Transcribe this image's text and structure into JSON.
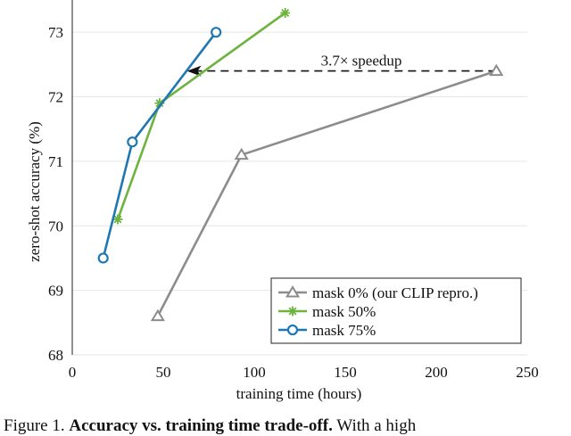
{
  "chart_data": {
    "type": "line",
    "xlabel": "training time (hours)",
    "ylabel": "zero-shot accuracy (%)",
    "xlim": [
      0,
      250
    ],
    "ylim": [
      68,
      73.5
    ],
    "xticks": [
      0,
      50,
      100,
      150,
      200,
      250
    ],
    "yticks": [
      68,
      69,
      70,
      71,
      72,
      73
    ],
    "grid": "horizontal",
    "legend_position": "bottom-right",
    "series": [
      {
        "name": "mask 0% (our CLIP repro.)",
        "color": "#8c8c8c",
        "marker": "triangle",
        "x": [
          47,
          93,
          233
        ],
        "y": [
          68.6,
          71.1,
          72.4
        ]
      },
      {
        "name": "mask 50%",
        "color": "#6db33f",
        "marker": "asterisk",
        "x": [
          25,
          48,
          117
        ],
        "y": [
          70.1,
          71.9,
          73.3
        ]
      },
      {
        "name": "mask 75%",
        "color": "#1f77b4",
        "marker": "circle",
        "x": [
          17,
          33,
          79
        ],
        "y": [
          69.5,
          71.3,
          73.0
        ]
      }
    ],
    "annotation": {
      "text": "3.7× speedup",
      "from": [
        233,
        72.4
      ],
      "to": [
        63,
        72.4
      ]
    }
  },
  "caption": {
    "prefix": "Figure 1.",
    "bold": "Accuracy vs. training time trade-off.",
    "rest": "With a high"
  }
}
